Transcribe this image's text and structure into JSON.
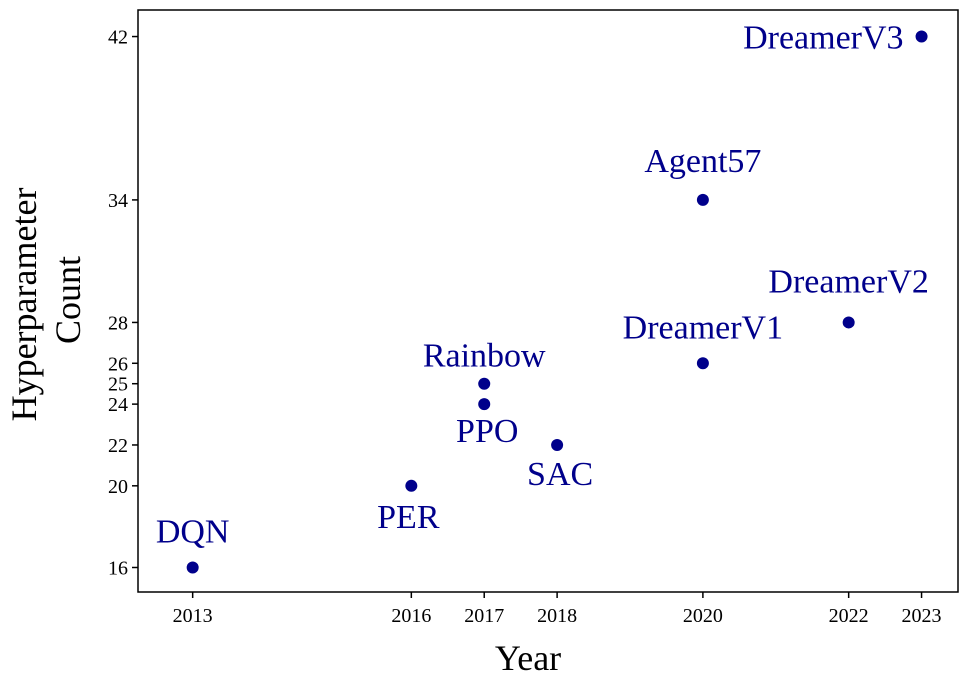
{
  "chart_data": {
    "type": "scatter",
    "title": "",
    "xlabel": "Year",
    "ylabel": [
      "Hyperparameter",
      "Count"
    ],
    "xlim": [
      2012.25,
      2023.5
    ],
    "ylim": [
      14.8,
      43.3
    ],
    "xticks": [
      2013,
      2016,
      2017,
      2018,
      2020,
      2022,
      2023
    ],
    "yticks": [
      16,
      20,
      22,
      24,
      25,
      26,
      28,
      34,
      42
    ],
    "grid": false,
    "color": "#00008B",
    "points": [
      {
        "label": "DQN",
        "x": 2013,
        "y": 16
      },
      {
        "label": "PER",
        "x": 2016,
        "y": 20
      },
      {
        "label": "Rainbow",
        "x": 2017,
        "y": 25
      },
      {
        "label": "PPO",
        "x": 2017,
        "y": 24
      },
      {
        "label": "SAC",
        "x": 2018,
        "y": 22
      },
      {
        "label": "DreamerV1",
        "x": 2020,
        "y": 26
      },
      {
        "label": "Agent57",
        "x": 2020,
        "y": 34
      },
      {
        "label": "DreamerV2",
        "x": 2022,
        "y": 28
      },
      {
        "label": "DreamerV3",
        "x": 2023,
        "y": 42
      }
    ]
  }
}
